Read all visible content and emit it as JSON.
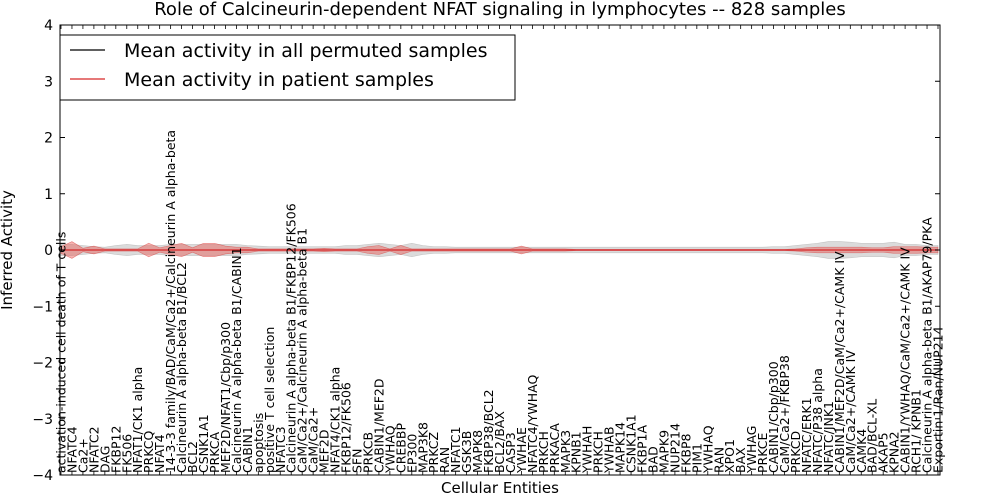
{
  "chart_data": {
    "type": "line",
    "title": "Role of Calcineurin-dependent NFAT signaling in lymphocytes -- 828 samples",
    "xlabel": "Cellular Entities",
    "ylabel": "Inferred Activity",
    "ylim": [
      -4,
      4
    ],
    "yticks": [
      -4,
      -3,
      -2,
      -1,
      0,
      1,
      2,
      3,
      4
    ],
    "ytick_labels": [
      "−4",
      "−3",
      "−2",
      "−1",
      "0",
      "1",
      "2",
      "3",
      "4"
    ],
    "grid": false,
    "legend": {
      "placement": "top-left",
      "entries": [
        {
          "label": "Mean activity in all permuted samples",
          "color": "#000000"
        },
        {
          "label": "Mean activity in patient samples",
          "color": "#d62728"
        }
      ]
    },
    "categories": [
      "activation-induced cell death of T cells",
      "NFATC4",
      "Ca2+",
      "NFATC2",
      "DAG",
      "FKBP12",
      "FK506",
      "NFAT1/CK1 alpha",
      "PRKCQ",
      "NFAT4",
      "14-3-3 family/BAD/CaM/Ca2+/Calcineurin A alpha-beta",
      "Calcineurin A alpha-beta B1/BCL2",
      "BCL2",
      "CSNK1A1",
      "PRKCA",
      "MEF2D/NFAT1/Cbp/p300",
      "Calcineurin A alpha-beta B1/CABIN1",
      "CABIN1",
      "apoptosis",
      "positive T cell selection",
      "NFATC3",
      "Calcineurin A alpha-beta B1/FKBP12/FK506",
      "CaM/Ca2+/Calcineurin A alpha-beta B1",
      "CaM/Ca2+",
      "MEF2D",
      "NFAT4/CK1 alpha",
      "FKBP12/FK506",
      "SFN",
      "PRKCB",
      "CABIN1/MEF2D",
      "YWHAQ",
      "CREBBP",
      "EP300",
      "MAP3K8",
      "PRKCZ",
      "RAN",
      "NFATC1",
      "GSK3B",
      "MAPK8",
      "FKBP38/BCL2",
      "BCL2/BAX",
      "CASP3",
      "YWHAE",
      "NFATC4/YWHAQ",
      "PRKCH",
      "PRKACA",
      "MAPK3",
      "KPNB1",
      "YWHAH",
      "PRKCH",
      "YWHAB",
      "MAPK14",
      "CSNK1A1",
      "FKBP1A",
      "BAD",
      "MAPK9",
      "NUP214",
      "FKBP8",
      "PIM1",
      "YWHAQ",
      "RAN",
      "XPO1",
      "BAX",
      "YWHAG",
      "PRKCE",
      "CABIN1/Cbp/p300",
      "CaM/Ca2+/FKBP38",
      "PRKCD",
      "NFATC/ERK1",
      "NFATC/P38 alpha",
      "NFATC/JNK1",
      "CABIN1/MEF2D/CaM/Ca2+/CAMK IV",
      "CaM/Ca2+/CAMK IV",
      "CAMK4",
      "BAD/BCL-XL",
      "AKAP5",
      "KPNA2",
      "CABIN1/YWHAQ/CaM/Ca2+/CAMK IV",
      "RCH1/ KPNB1",
      "Calcineurin A alpha-beta B1/AKAP79/PKA",
      "Exportin 1/Ran/NUP214"
    ],
    "series": [
      {
        "name": "Mean activity in all permuted samples",
        "color": "#000000",
        "values": [
          0,
          0,
          0,
          0,
          0,
          0,
          0,
          0,
          0,
          0,
          0,
          0,
          0,
          0,
          0,
          0,
          0,
          0,
          0,
          0,
          0,
          0,
          0,
          0,
          0,
          0,
          0,
          0,
          0,
          0,
          0,
          0,
          0,
          0,
          0,
          0,
          0,
          0,
          0,
          0,
          0,
          0,
          0,
          0,
          0,
          0,
          0,
          0,
          0,
          0,
          0,
          0,
          0,
          0,
          0,
          0,
          0,
          0,
          0,
          0,
          0,
          0,
          0,
          0,
          0,
          0,
          0,
          0,
          0,
          0,
          0,
          0,
          0,
          0,
          0,
          0,
          0,
          0,
          0,
          0,
          0
        ],
        "band_halfwidth": [
          0.1,
          0.1,
          0.08,
          0.06,
          0.05,
          0.08,
          0.1,
          0.08,
          0.08,
          0.08,
          0.1,
          0.1,
          0.1,
          0.1,
          0.1,
          0.1,
          0.1,
          0.08,
          0.07,
          0.06,
          0.06,
          0.06,
          0.06,
          0.06,
          0.06,
          0.06,
          0.08,
          0.08,
          0.1,
          0.12,
          0.1,
          0.08,
          0.12,
          0.08,
          0.06,
          0.06,
          0.05,
          0.05,
          0.05,
          0.05,
          0.05,
          0.05,
          0.05,
          0.05,
          0.05,
          0.05,
          0.05,
          0.05,
          0.05,
          0.05,
          0.05,
          0.05,
          0.05,
          0.05,
          0.05,
          0.05,
          0.05,
          0.05,
          0.05,
          0.05,
          0.05,
          0.05,
          0.05,
          0.05,
          0.05,
          0.06,
          0.06,
          0.08,
          0.1,
          0.12,
          0.15,
          0.15,
          0.14,
          0.12,
          0.12,
          0.12,
          0.14,
          0.1,
          0.1,
          0.08,
          0.08
        ]
      },
      {
        "name": "Mean activity in patient samples",
        "color": "#d62728",
        "values": [
          0,
          0,
          0,
          0,
          0,
          0,
          0,
          0,
          0,
          0,
          0,
          0,
          0,
          0,
          0,
          0,
          0,
          0,
          0,
          0,
          0,
          0,
          0,
          0,
          0,
          0,
          0,
          0,
          0,
          0,
          0,
          0,
          0,
          0,
          0,
          0,
          0,
          0,
          0,
          0,
          0,
          0,
          0,
          0,
          0,
          0,
          0,
          0,
          0,
          0,
          0,
          0,
          0,
          0,
          0,
          0,
          0,
          0,
          0,
          0,
          0,
          0,
          0,
          0,
          0,
          0,
          0,
          0,
          0,
          0,
          0,
          0,
          0,
          0,
          0,
          0,
          0,
          0,
          0,
          0,
          0
        ],
        "band_halfwidth": [
          0.06,
          0.15,
          0.03,
          0.07,
          0.02,
          0.02,
          0.02,
          0.02,
          0.12,
          0.04,
          0.08,
          0.12,
          0.04,
          0.12,
          0.12,
          0.07,
          0.05,
          0.05,
          0.02,
          0.02,
          0.02,
          0.02,
          0.02,
          0.02,
          0.03,
          0.02,
          0.02,
          0.02,
          0.06,
          0.08,
          0.02,
          0.08,
          0.02,
          0.02,
          0.02,
          0.02,
          0.02,
          0.02,
          0.02,
          0.02,
          0.02,
          0.02,
          0.07,
          0.02,
          0.02,
          0.02,
          0.02,
          0.01,
          0.01,
          0.01,
          0.01,
          0.01,
          0.01,
          0.01,
          0.01,
          0.01,
          0.01,
          0.01,
          0.01,
          0.01,
          0.01,
          0.01,
          0.01,
          0.01,
          0.01,
          0.01,
          0.01,
          0.02,
          0.04,
          0.05,
          0.05,
          0.05,
          0.05,
          0.05,
          0.04,
          0.04,
          0.06,
          0.06,
          0.06,
          0.05,
          0.05
        ]
      }
    ]
  }
}
